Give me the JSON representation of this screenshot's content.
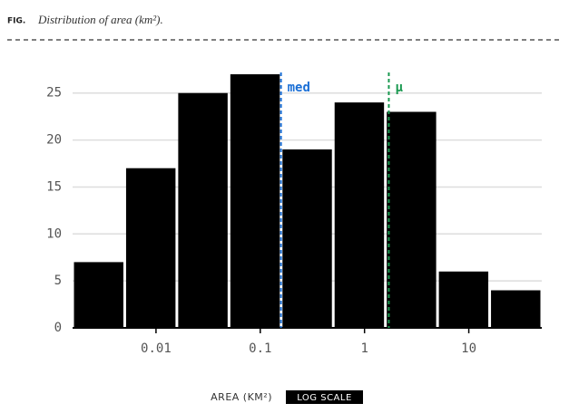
{
  "chart_data": {
    "type": "histogram",
    "fig_label": "FIG.",
    "title": "Distribution of area (km²).",
    "x_label": "AREA (KM²)",
    "xscale": "log",
    "xscale_label": "LOG SCALE",
    "bins": [
      0.001585,
      0.005012,
      0.01585,
      0.05012,
      0.1585,
      0.5012,
      1.585,
      5.012,
      15.85,
      50.12
    ],
    "values": [
      7,
      17,
      25,
      27,
      19,
      24,
      23,
      6,
      4
    ],
    "color": "#000000",
    "xlim": [
      0.001585,
      50.12
    ],
    "xticks": [
      0.01,
      0.1,
      1,
      10
    ],
    "ylim": [
      0,
      27
    ],
    "yticks": [
      0,
      5,
      10,
      15,
      20,
      25
    ],
    "grid": true,
    "annotations": [
      {
        "label": "med",
        "x": 0.158,
        "color": "#1a6fd6"
      },
      {
        "label": "μ",
        "x": 1.71,
        "color": "#1a9950"
      }
    ]
  }
}
